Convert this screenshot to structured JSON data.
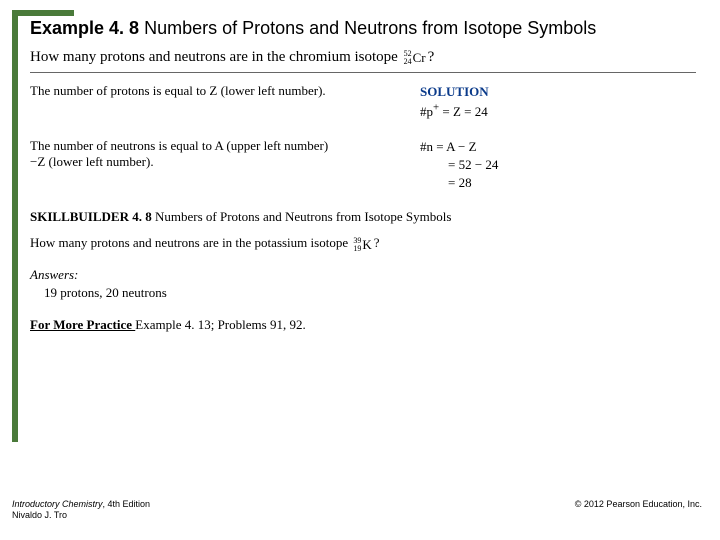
{
  "title": {
    "prefix": "Example 4. 8 ",
    "rest": "Numbers of Protons and Neutrons from Isotope Symbols"
  },
  "question": {
    "before": "How many protons and neutrons are in the chromium isotope ",
    "isotope": {
      "A": "52",
      "Z": "24",
      "sym": "Cr"
    },
    "after": "?"
  },
  "row1": {
    "left": "The number of protons is equal to Z (lower left number).",
    "solution_label": "SOLUTION",
    "line1": "#p",
    "line1_rest": " = Z = 24"
  },
  "row2": {
    "left_l1": "The number of neutrons is equal to A (upper left number)",
    "left_l2": "−Z (lower left number).",
    "line1": "#n = A − Z",
    "line2": "= 52 − 24",
    "line3": "= 28"
  },
  "skillbuilder": {
    "label": "SKILLBUILDER 4. 8 ",
    "rest": "Numbers of Protons and Neutrons from Isotope Symbols"
  },
  "sb_question": {
    "before": "How many protons and neutrons are in the potassium isotope ",
    "isotope": {
      "A": "39",
      "Z": "19",
      "sym": "K"
    },
    "after": "?"
  },
  "answers": {
    "label": "Answers:",
    "body": "19 protons, 20 neutrons"
  },
  "more": {
    "label": "For More Practice ",
    "rest": "Example 4. 13; Problems 91, 92."
  },
  "footer": {
    "book_title": "Introductory Chemistry",
    "edition": ", 4th Edition",
    "author": "Nivaldo J. Tro",
    "copyright": "© 2012 Pearson Education, Inc."
  },
  "colors": {
    "accent": "#4a7a3a",
    "solution": "#0a3a8a"
  }
}
